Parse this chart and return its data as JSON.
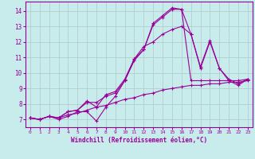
{
  "xlabel": "Windchill (Refroidissement éolien,°C)",
  "bg_color": "#c8ecec",
  "line_color": "#990099",
  "grid_color": "#b0c8c8",
  "xlim": [
    -0.5,
    23.5
  ],
  "ylim": [
    6.5,
    14.6
  ],
  "xticks": [
    0,
    1,
    2,
    3,
    4,
    5,
    6,
    7,
    8,
    9,
    10,
    11,
    12,
    13,
    14,
    15,
    16,
    17,
    18,
    19,
    20,
    21,
    22,
    23
  ],
  "yticks": [
    7,
    8,
    9,
    10,
    11,
    12,
    13,
    14
  ],
  "lines": [
    {
      "x": [
        0,
        1,
        2,
        3,
        4,
        5,
        6,
        7,
        8,
        9,
        10,
        11,
        12,
        13,
        14,
        15,
        16,
        17,
        18,
        19,
        20,
        21,
        22,
        23
      ],
      "y": [
        7.1,
        7.0,
        7.2,
        7.1,
        7.3,
        7.4,
        7.6,
        7.8,
        7.9,
        8.1,
        8.3,
        8.4,
        8.6,
        8.7,
        8.9,
        9.0,
        9.1,
        9.2,
        9.2,
        9.3,
        9.3,
        9.4,
        9.4,
        9.5
      ]
    },
    {
      "x": [
        0,
        1,
        2,
        3,
        4,
        5,
        6,
        7,
        8,
        9,
        10,
        11,
        12,
        13,
        14,
        15,
        16,
        17,
        18,
        19,
        20,
        21,
        22,
        23
      ],
      "y": [
        7.1,
        7.0,
        7.2,
        7.0,
        7.2,
        7.5,
        7.5,
        6.9,
        7.8,
        8.5,
        9.5,
        10.8,
        11.5,
        13.1,
        13.6,
        14.1,
        14.1,
        9.5,
        9.5,
        9.5,
        9.5,
        9.5,
        9.5,
        9.6
      ]
    },
    {
      "x": [
        0,
        1,
        2,
        3,
        4,
        5,
        6,
        7,
        8,
        9,
        10,
        11,
        12,
        13,
        14,
        15,
        16,
        17,
        18,
        19,
        20,
        21,
        22,
        23
      ],
      "y": [
        7.1,
        7.0,
        7.2,
        7.1,
        7.5,
        7.6,
        8.1,
        8.1,
        8.5,
        8.7,
        9.5,
        10.9,
        11.5,
        13.2,
        13.7,
        14.2,
        14.1,
        12.5,
        10.3,
        12.0,
        10.3,
        9.5,
        9.2,
        9.6
      ]
    },
    {
      "x": [
        0,
        1,
        2,
        3,
        4,
        5,
        6,
        7,
        8,
        9,
        10,
        11,
        12,
        13,
        14,
        15,
        16,
        17,
        18,
        19,
        20,
        21,
        22,
        23
      ],
      "y": [
        7.1,
        7.0,
        7.2,
        7.1,
        7.5,
        7.6,
        8.2,
        7.8,
        8.6,
        8.8,
        9.6,
        10.9,
        11.7,
        12.0,
        12.5,
        12.8,
        13.0,
        12.5,
        10.4,
        12.1,
        10.3,
        9.6,
        9.3,
        9.6
      ]
    }
  ]
}
